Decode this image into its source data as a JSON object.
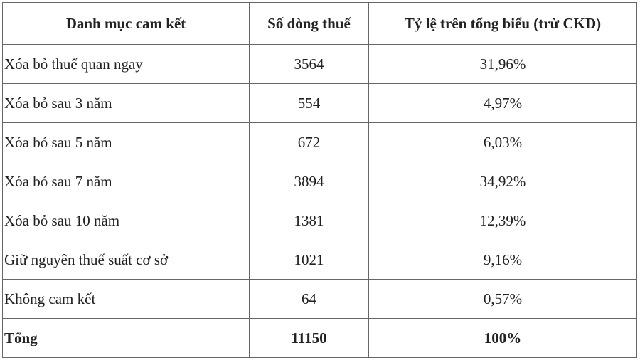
{
  "table": {
    "header": [
      "Danh mục cam kết",
      "Số dòng thuế",
      "Tỷ lệ trên tổng biểu (trừ CKD)"
    ],
    "rows": [
      [
        "Xóa bỏ thuế quan ngay",
        "3564",
        "31,96%"
      ],
      [
        "Xóa bỏ sau 3 năm",
        "554",
        "4,97%"
      ],
      [
        "Xóa bỏ sau 5 năm",
        "672",
        "6,03%"
      ],
      [
        "Xóa bỏ sau 7 năm",
        "3894",
        "34,92%"
      ],
      [
        "Xóa bỏ sau 10 năm",
        "1381",
        "12,39%"
      ],
      [
        "Giữ nguyên thuế suất cơ sở",
        "1021",
        "9,16%"
      ],
      [
        "Không cam kết",
        "64",
        "0,57%"
      ],
      [
        "Tổng",
        "11150",
        "100%"
      ]
    ]
  }
}
